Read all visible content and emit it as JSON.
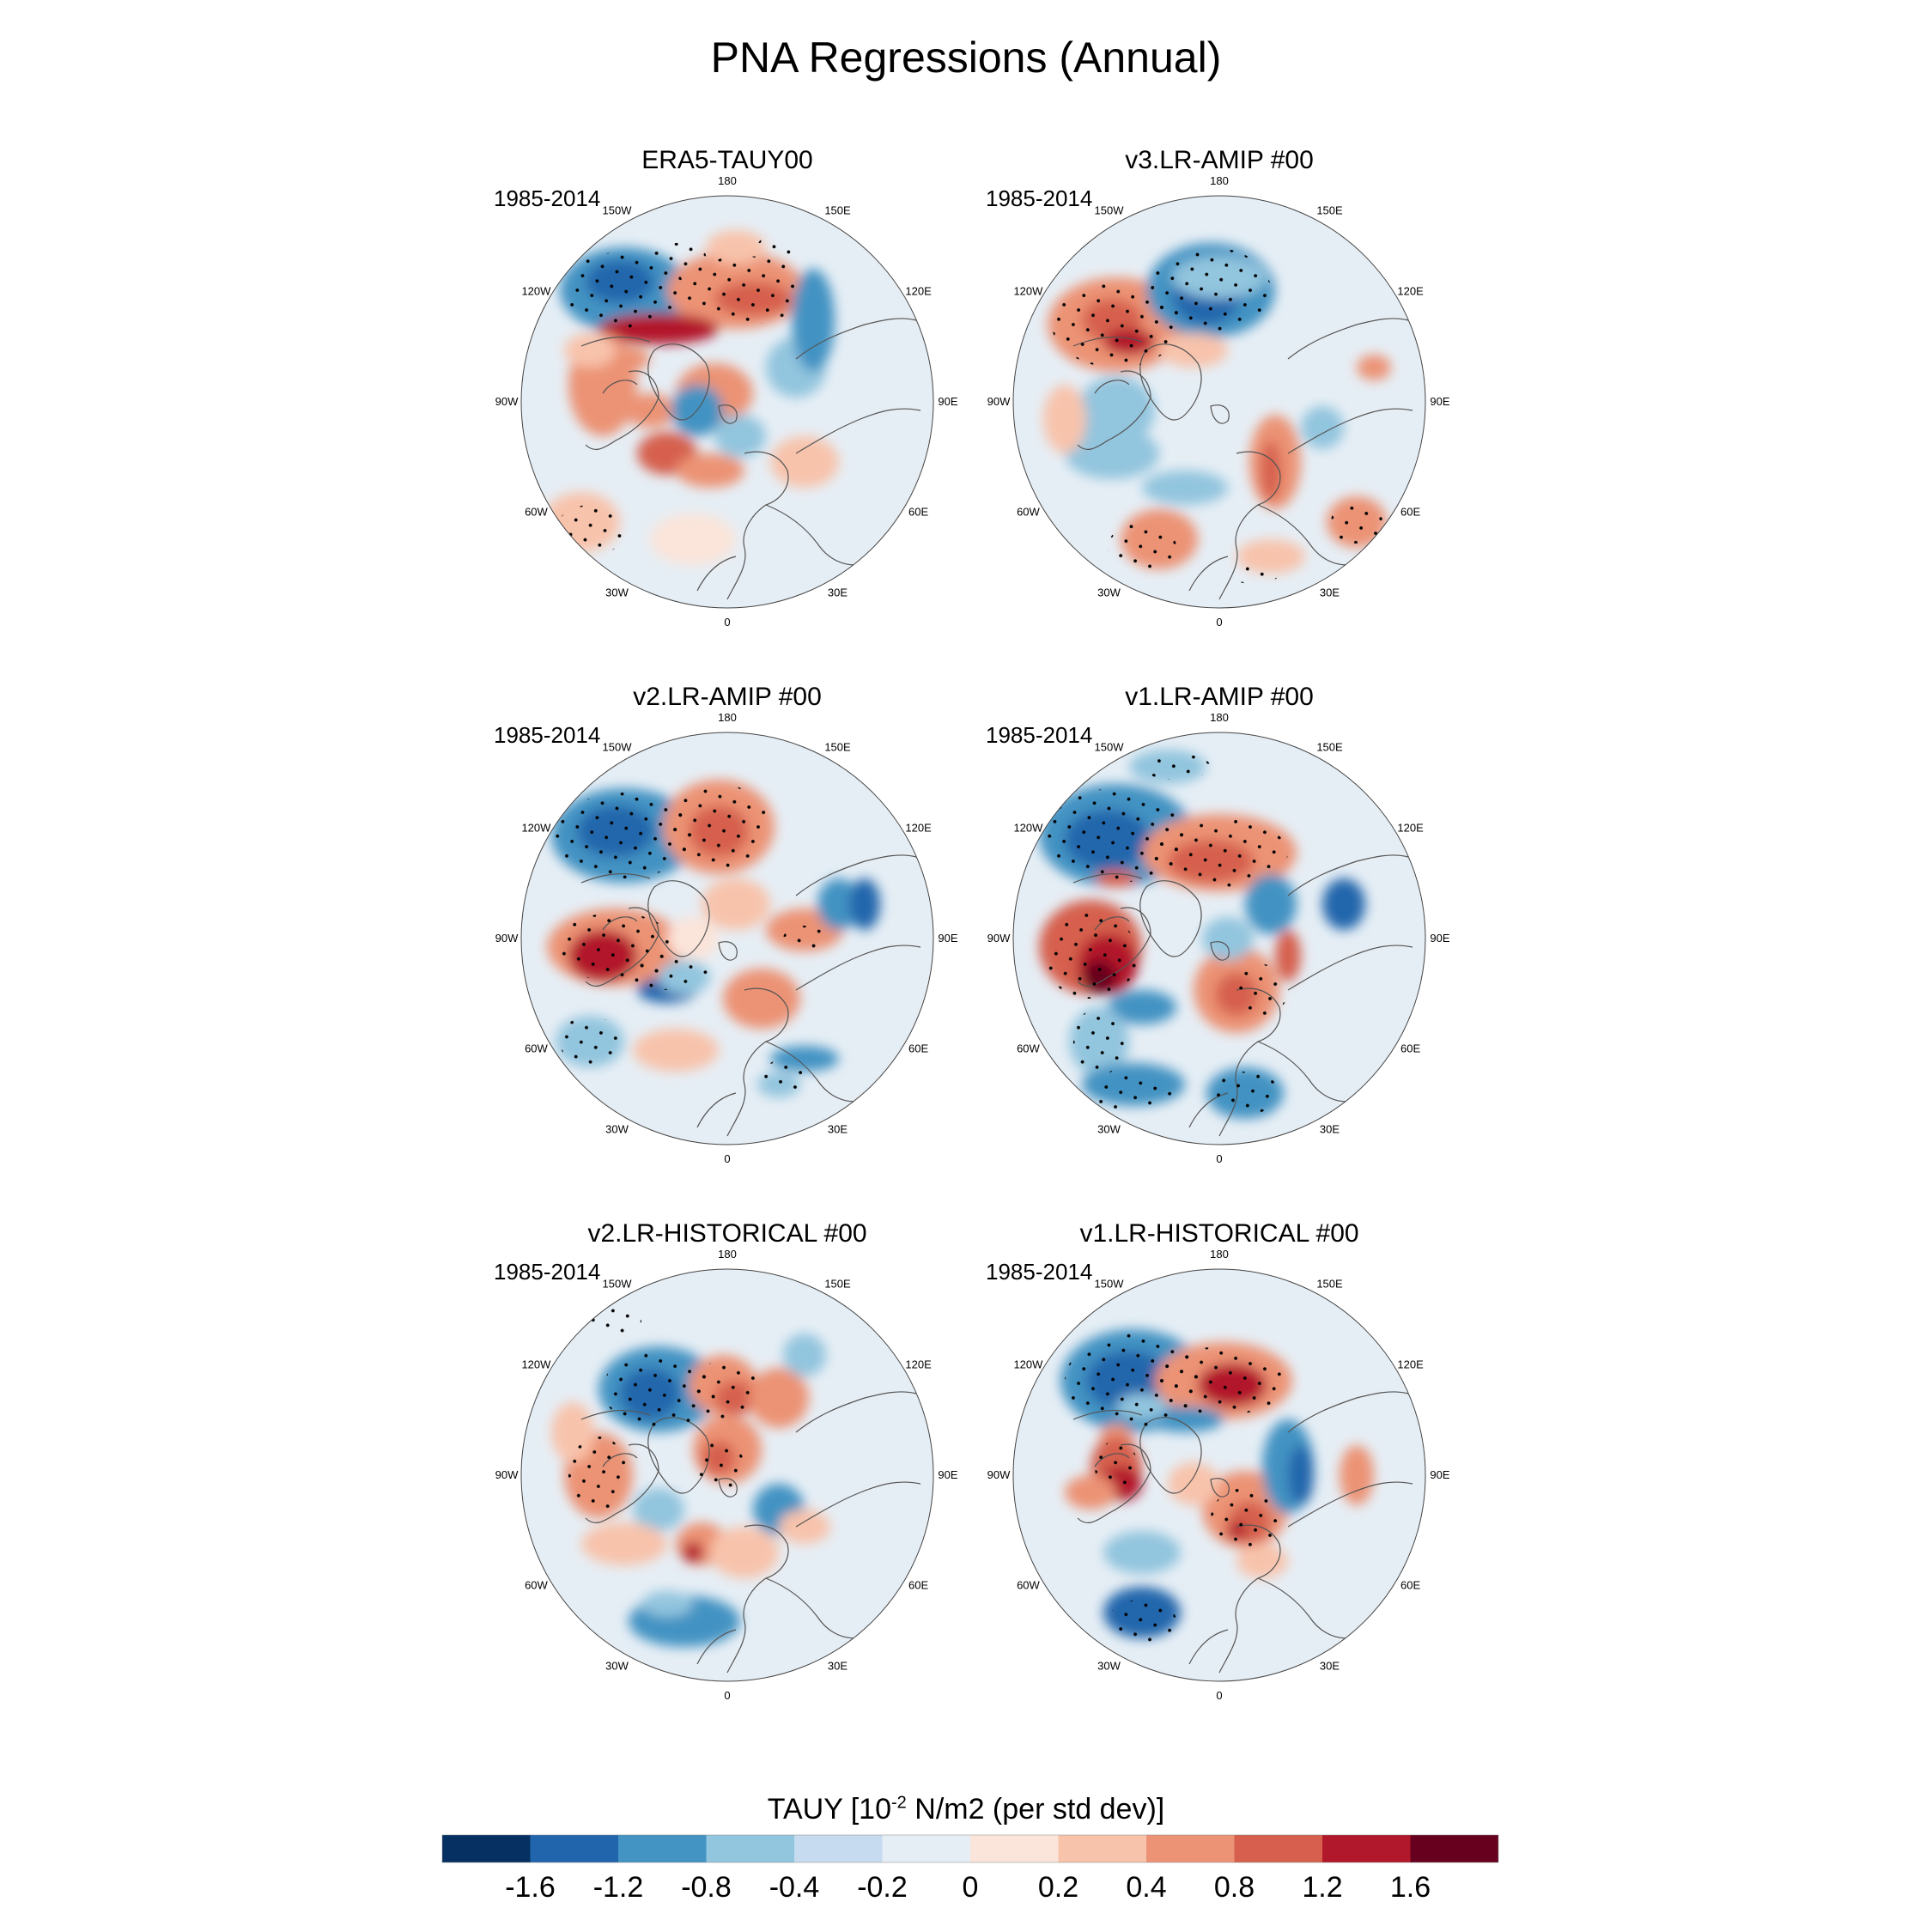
{
  "title": "PNA Regressions (Annual)",
  "period_label": "1985-2014",
  "longitude_labels": [
    "180",
    "150E",
    "120E",
    "90E",
    "60E",
    "30E",
    "0",
    "30W",
    "60W",
    "90W",
    "120W",
    "150W"
  ],
  "panels": [
    {
      "title": "ERA5-TAUY00",
      "period": "1985-2014"
    },
    {
      "title": "v3.LR-AMIP  #00",
      "period": "1985-2014"
    },
    {
      "title": "v2.LR-AMIP  #00",
      "period": "1985-2014"
    },
    {
      "title": "v1.LR-AMIP  #00",
      "period": "1985-2014"
    },
    {
      "title": "v2.LR-HISTORICAL  #00",
      "period": "1985-2014"
    },
    {
      "title": "v1.LR-HISTORICAL  #00",
      "period": "1985-2014"
    }
  ],
  "colorbar": {
    "title_prefix": "TAUY [10",
    "title_exp": "-2",
    "title_suffix": " N/m2 (per std dev)]",
    "colors": [
      "#053061",
      "#2166ac",
      "#4393c3",
      "#92c5de",
      "#c6dbef",
      "#e6eef5",
      "#fbe4d9",
      "#f8c3ab",
      "#ec9375",
      "#d6604d",
      "#b2182b",
      "#67001f"
    ],
    "ticks": [
      "-1.6",
      "-1.2",
      "-0.8",
      "-0.4",
      "-0.2",
      "0",
      "0.2",
      "0.4",
      "0.8",
      "1.2",
      "1.6"
    ]
  },
  "palette": {
    "background": "#ffffff",
    "coast": "#555555",
    "stipple": "#000000"
  }
}
